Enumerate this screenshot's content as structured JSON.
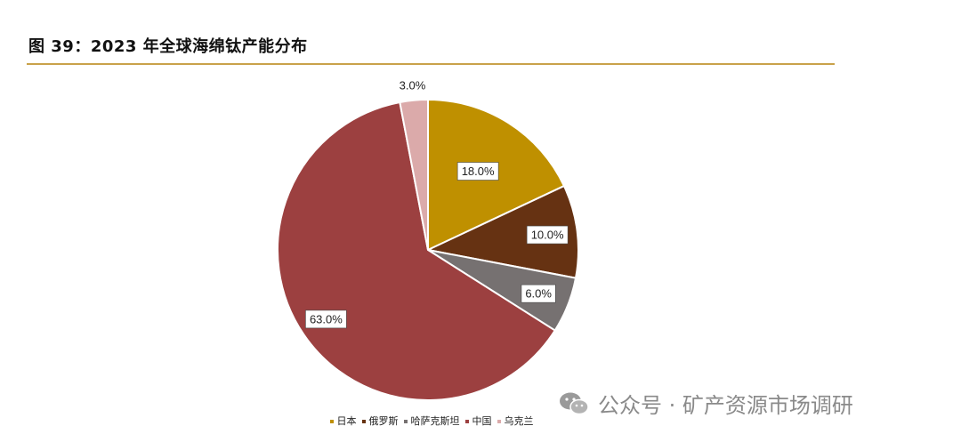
{
  "header": {
    "title": "图 39：2023 年全球海绵钛产能分布"
  },
  "colors": {
    "rule": "#c9a24a",
    "label_stroke": "#444444"
  },
  "chart_data": {
    "type": "pie",
    "title": "",
    "labels": [
      "日本",
      "俄罗斯",
      "哈萨克斯坦",
      "中国",
      "乌克兰"
    ],
    "values": [
      18.0,
      10.0,
      6.0,
      63.0,
      3.0
    ],
    "value_labels": [
      "18.0%",
      "10.0%",
      "6.0%",
      "63.0%",
      "3.0%"
    ],
    "colors": [
      "#bf9000",
      "#663212",
      "#767171",
      "#9c4040",
      "#dbaaaa"
    ],
    "start": "12 o'clock",
    "direction": "clockwise",
    "legend_placement": "bottom"
  },
  "watermark": {
    "text": "公众号 · 矿产资源市场调研"
  }
}
